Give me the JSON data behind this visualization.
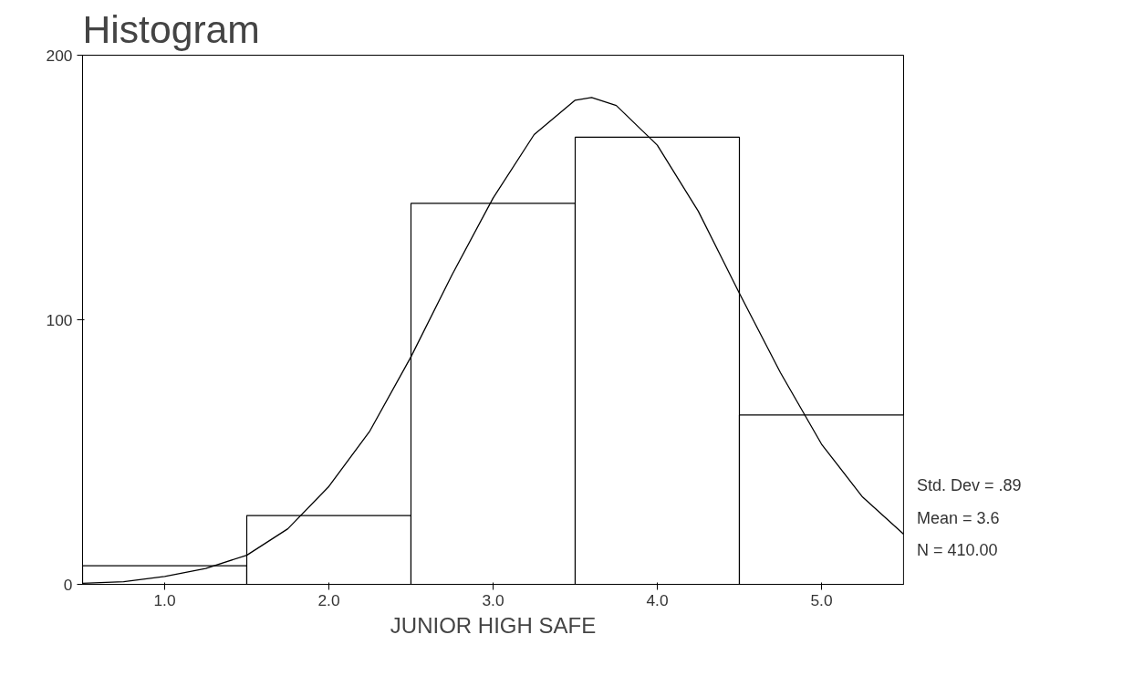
{
  "chart_data": {
    "type": "histogram",
    "title": "Histogram",
    "xlabel": "JUNIOR HIGH SAFE",
    "bins": [
      0.5,
      1.5,
      2.5,
      3.5,
      4.5,
      5.5
    ],
    "values": [
      7,
      26,
      144,
      169,
      64
    ],
    "color": "#ffffff",
    "series": [
      {
        "type": "line",
        "color": "#000000",
        "x": [
          0.5,
          0.75,
          1.0,
          1.25,
          1.5,
          1.75,
          2.0,
          2.25,
          2.5,
          2.75,
          3.0,
          3.25,
          3.5,
          3.6,
          3.75,
          4.0,
          4.25,
          4.5,
          4.75,
          5.0,
          5.25,
          5.5
        ],
        "values": [
          0.4,
          1,
          3,
          6,
          11,
          21,
          37,
          58,
          86,
          117,
          146,
          170,
          183,
          184,
          181,
          166,
          141,
          110,
          80,
          53,
          33,
          19
        ]
      }
    ],
    "xlim": [
      0.5,
      5.5
    ],
    "ylim": [
      0,
      200
    ],
    "xticks": [
      {
        "value": 1,
        "label": "1.0"
      },
      {
        "value": 2,
        "label": "2.0"
      },
      {
        "value": 3,
        "label": "3.0"
      },
      {
        "value": 4,
        "label": "4.0"
      },
      {
        "value": 5,
        "label": "5.0"
      }
    ],
    "yticks": [
      0,
      100,
      200
    ],
    "grid": false,
    "annotations": [
      "Std. Dev = .89",
      "Mean = 3.6",
      "N = 410.00"
    ]
  }
}
